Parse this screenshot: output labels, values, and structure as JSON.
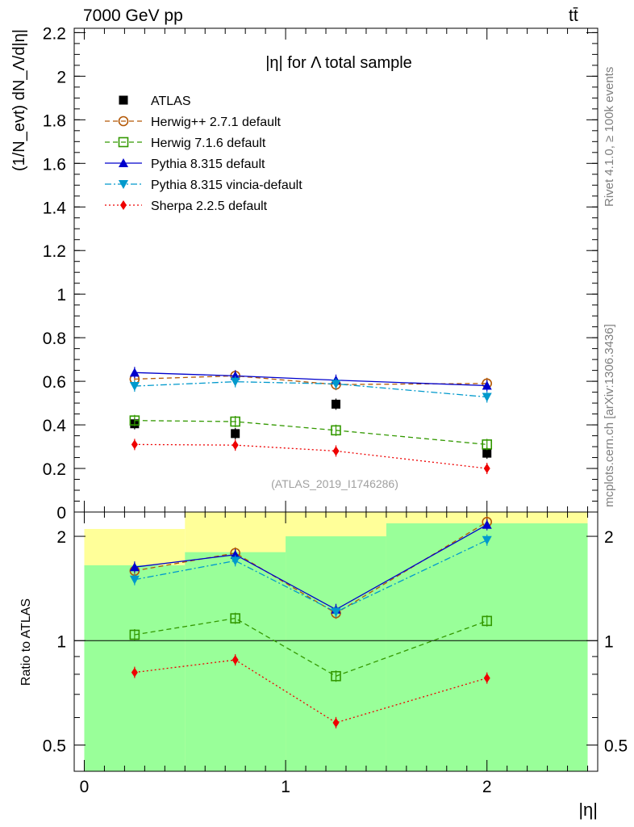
{
  "header": {
    "energy_label": "7000 GeV pp",
    "process_label": "tt̄"
  },
  "side_labels": {
    "rivet": "Rivet 4.1.0, ≥ 100k events",
    "mcplots": "mcplots.cern.ch [arXiv:1306.3436]"
  },
  "chart_data": [
    {
      "type": "line",
      "panel": "main",
      "title": "|η| for Λ total sample",
      "ylabel": "(1/N_evt) dN_Λ/d|η|",
      "watermark": "(ATLAS_2019_I1746286)",
      "xlim": [
        -0.05,
        2.55
      ],
      "ylim": [
        0,
        2.22
      ],
      "yticks": [
        0,
        0.2,
        0.4,
        0.6,
        0.8,
        1,
        1.2,
        1.4,
        1.6,
        1.8,
        2,
        2.2
      ],
      "ytick_labels": [
        "0",
        "0.2",
        "0.4",
        "0.6",
        "0.8",
        "1",
        "1.2",
        "1.4",
        "1.6",
        "1.8",
        "2",
        "2.2"
      ],
      "legend_position": "top-left",
      "x": [
        0.25,
        0.75,
        1.25,
        2.0
      ],
      "series": [
        {
          "name": "ATLAS",
          "marker": "square-filled",
          "color": "#000000",
          "line": "none",
          "values": [
            0.405,
            0.36,
            0.495,
            0.27
          ]
        },
        {
          "name": "Herwig++ 2.7.1 default",
          "marker": "circle-open",
          "color": "#b35806",
          "line": "dashed",
          "values": [
            0.61,
            0.625,
            0.585,
            0.59
          ]
        },
        {
          "name": "Herwig 7.1.6 default",
          "marker": "square-open",
          "color": "#339900",
          "line": "dashed",
          "values": [
            0.42,
            0.415,
            0.375,
            0.31
          ]
        },
        {
          "name": "Pythia 8.315 default",
          "marker": "triangle-up",
          "color": "#0000cc",
          "line": "solid",
          "values": [
            0.64,
            0.625,
            0.605,
            0.58
          ]
        },
        {
          "name": "Pythia 8.315 vincia-default",
          "marker": "triangle-down",
          "color": "#0099cc",
          "line": "dashdot",
          "values": [
            0.578,
            0.598,
            0.588,
            0.528
          ]
        },
        {
          "name": "Sherpa 2.2.5 default",
          "marker": "diamond",
          "color": "#ee0000",
          "line": "dotted",
          "values": [
            0.31,
            0.307,
            0.28,
            0.2
          ]
        }
      ]
    },
    {
      "type": "line",
      "panel": "ratio",
      "ylabel": "Ratio to ATLAS",
      "xlabel": "|η|",
      "yscale": "log",
      "xlim": [
        -0.05,
        2.55
      ],
      "ylim": [
        0.42,
        2.35
      ],
      "yticks": [
        0.5,
        1,
        2
      ],
      "ytick_labels": [
        "0.5",
        "1",
        "2"
      ],
      "xticks": [
        0,
        1,
        2
      ],
      "xtick_labels": [
        "0",
        "1",
        "2"
      ],
      "reference_line": 1,
      "bands": [
        {
          "name": "total uncertainty",
          "color": "#ffff99",
          "bins": [
            [
              0,
              0.5,
              0.4,
              2.1
            ],
            [
              0.5,
              1.5,
              0.35,
              2.35
            ],
            [
              1.5,
              2.5,
              0.35,
              2.35
            ]
          ]
        },
        {
          "name": "statistical uncertainty",
          "color": "#99ff99",
          "bins": [
            [
              0,
              0.5,
              0.4,
              1.65
            ],
            [
              0.5,
              1.0,
              0.35,
              1.8
            ],
            [
              1.0,
              1.5,
              0.35,
              2.0
            ],
            [
              1.5,
              2.5,
              0.35,
              2.18
            ]
          ]
        }
      ],
      "x": [
        0.25,
        0.75,
        1.25,
        2.0
      ],
      "series": [
        {
          "name": "Herwig++ 2.7.1 default",
          "values": [
            1.59,
            1.79,
            1.2,
            2.2
          ]
        },
        {
          "name": "Herwig 7.1.6 default",
          "values": [
            1.04,
            1.16,
            0.79,
            1.14
          ]
        },
        {
          "name": "Pythia 8.315 default",
          "values": [
            1.63,
            1.77,
            1.23,
            2.16
          ]
        },
        {
          "name": "Pythia 8.315 vincia-default",
          "values": [
            1.5,
            1.7,
            1.21,
            1.95
          ]
        },
        {
          "name": "Sherpa 2.2.5 default",
          "values": [
            0.81,
            0.88,
            0.58,
            0.78
          ]
        }
      ]
    }
  ]
}
